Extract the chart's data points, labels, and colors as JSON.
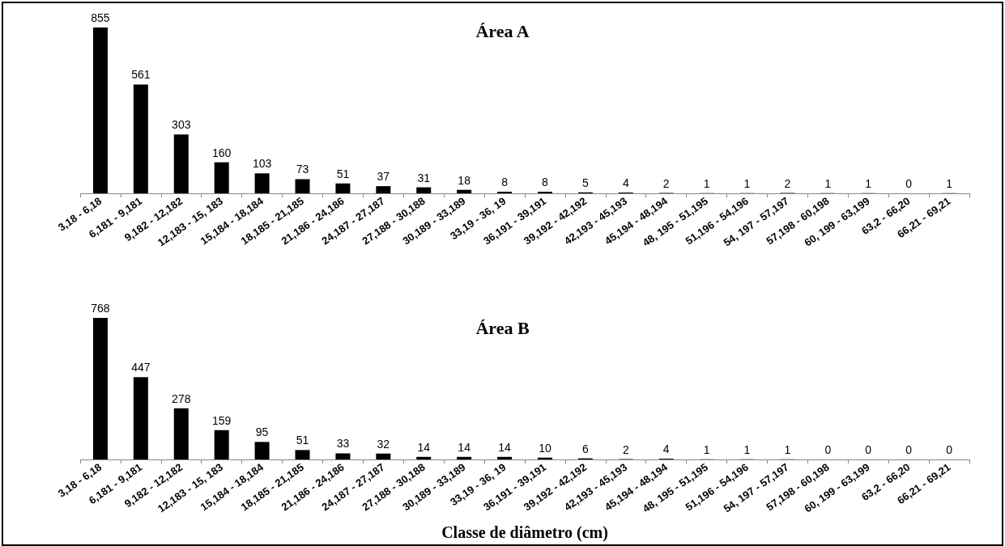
{
  "chart_data": [
    {
      "type": "bar",
      "title": "Área A",
      "categories": [
        "3,18 - 6,18",
        "6,181 - 9,181",
        "9,182 - 12,182",
        "12,183 - 15, 183",
        "15,184 - 18,184",
        "18,185 - 21,185",
        "21,186 - 24,186",
        "24,187 - 27,187",
        "27,188 - 30,188",
        "30,189 - 33,189",
        "33,19 - 36, 19",
        "36,191 - 39,191",
        "39,192 - 42,192",
        "42,193 - 45,193",
        "45,194 - 48,194",
        "48, 195 - 51,195",
        "51,196 - 54,196",
        "54, 197 - 57,197",
        "57,198 - 60,198",
        "60, 199 - 63,199",
        "63,2 - 66,20",
        "66,21 - 69,21"
      ],
      "values": [
        855,
        561,
        303,
        160,
        103,
        73,
        51,
        37,
        31,
        18,
        8,
        8,
        5,
        4,
        2,
        1,
        1,
        2,
        1,
        1,
        0,
        1
      ],
      "color": "#000000",
      "data_labels": true
    },
    {
      "type": "bar",
      "title": "Área B",
      "xlabel": "Classe de diâmetro (cm)",
      "categories": [
        "3,18 - 6,18",
        "6,181 - 9,181",
        "9,182 - 12,182",
        "12,183 - 15, 183",
        "15,184 - 18,184",
        "18,185 - 21,185",
        "21,186 - 24,186",
        "24,187 - 27,187",
        "27,188 - 30,188",
        "30,189 - 33,189",
        "33,19 - 36, 19",
        "36,191 - 39,191",
        "39,192 - 42,192",
        "42,193 - 45,193",
        "45,194 - 48,194",
        "48, 195 - 51,195",
        "51,196 - 54,196",
        "54, 197 - 57,197",
        "57,198 - 60,198",
        "60, 199 - 63,199",
        "63,2 - 66,20",
        "66,21 - 69,21"
      ],
      "values": [
        768,
        447,
        278,
        159,
        95,
        51,
        33,
        32,
        14,
        14,
        14,
        10,
        6,
        2,
        4,
        1,
        1,
        1,
        0,
        0,
        0,
        0
      ],
      "color": "#000000",
      "data_labels": true
    }
  ]
}
